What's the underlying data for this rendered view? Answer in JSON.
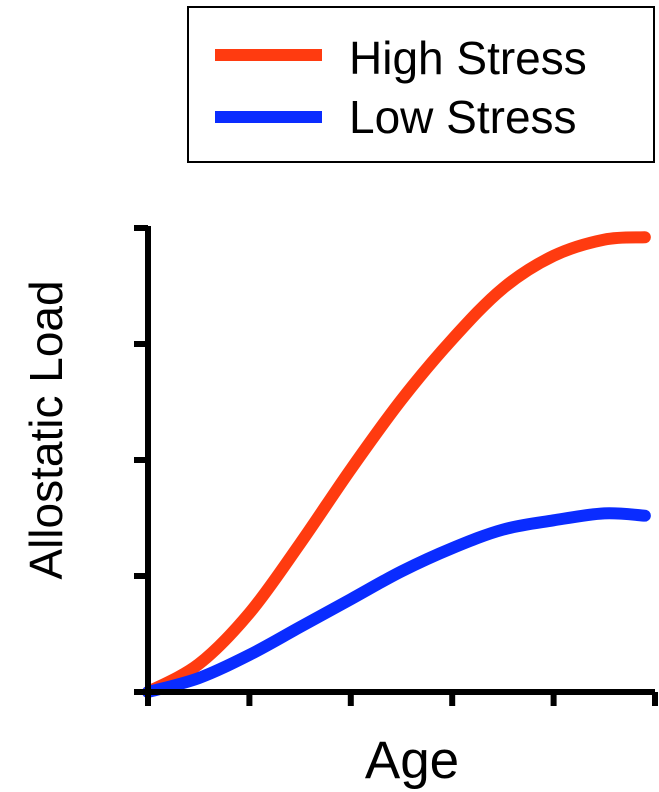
{
  "chart_data": {
    "type": "line",
    "title": "",
    "xlabel": "Age",
    "ylabel": "Allostatic Load",
    "x": [
      0,
      0.1,
      0.2,
      0.3,
      0.4,
      0.5,
      0.6,
      0.7,
      0.8,
      0.9,
      0.98
    ],
    "xlim": [
      0,
      1
    ],
    "ylim": [
      0,
      1
    ],
    "x_ticks": [
      0,
      0.2,
      0.4,
      0.6,
      0.8,
      1.0
    ],
    "y_ticks": [
      0,
      0.25,
      0.5,
      0.75,
      1.0
    ],
    "tick_labels_shown": false,
    "grid": false,
    "legend_position": "top-right",
    "series": [
      {
        "name": "High Stress",
        "color": "#ff3b10",
        "values": [
          0.0,
          0.06,
          0.17,
          0.32,
          0.48,
          0.63,
          0.76,
          0.87,
          0.94,
          0.975,
          0.98
        ]
      },
      {
        "name": "Low Stress",
        "color": "#0a2cff",
        "values": [
          0.0,
          0.03,
          0.08,
          0.14,
          0.2,
          0.26,
          0.31,
          0.35,
          0.37,
          0.385,
          0.38
        ]
      }
    ]
  }
}
